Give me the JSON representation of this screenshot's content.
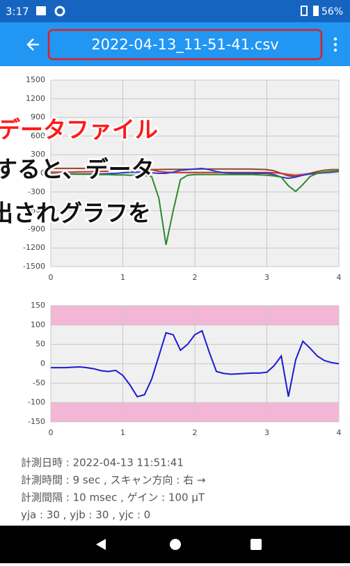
{
  "status_bar": {
    "time": "3:17",
    "battery": "56%"
  },
  "toolbar": {
    "title": "2022-04-13_11-51-41.csv"
  },
  "chart_data": [
    {
      "type": "line",
      "grid": true,
      "xlim": [
        0,
        4
      ],
      "ylim": [
        -1500,
        1500
      ],
      "xticks": [
        0,
        1,
        2,
        3,
        4
      ],
      "yticks": [
        1500,
        1200,
        900,
        600,
        300,
        0,
        -300,
        -600,
        -900,
        -1200,
        -1500
      ],
      "x": [
        0,
        0.1,
        0.2,
        0.3,
        0.4,
        0.5,
        0.6,
        0.7,
        0.8,
        0.9,
        1,
        1.1,
        1.2,
        1.3,
        1.4,
        1.5,
        1.6,
        1.7,
        1.8,
        1.9,
        2,
        2.1,
        2.2,
        2.3,
        2.4,
        2.5,
        2.6,
        2.7,
        2.8,
        2.9,
        3,
        3.1,
        3.2,
        3.3,
        3.4,
        3.5,
        3.6,
        3.7,
        3.8,
        3.9,
        4
      ],
      "series": [
        {
          "color": "#8b4a2b",
          "values": [
            80,
            80,
            80,
            80,
            80,
            80,
            80,
            80,
            80,
            78,
            75,
            70,
            65,
            60,
            60,
            62,
            65,
            65,
            65,
            66,
            68,
            70,
            70,
            70,
            70,
            70,
            70,
            70,
            68,
            65,
            60,
            40,
            0,
            -40,
            -50,
            -30,
            0,
            30,
            50,
            60,
            60
          ]
        },
        {
          "color": "#d03030",
          "values": [
            20,
            20,
            20,
            20,
            25,
            25,
            30,
            30,
            35,
            40,
            60,
            90,
            100,
            90,
            60,
            30,
            20,
            15,
            15,
            15,
            15,
            15,
            15,
            15,
            15,
            15,
            15,
            15,
            15,
            15,
            15,
            10,
            0,
            -20,
            -30,
            -20,
            0,
            10,
            20,
            30,
            35
          ]
        },
        {
          "color": "#2a3ad0",
          "values": [
            -10,
            -10,
            -10,
            -10,
            -10,
            -10,
            -10,
            -10,
            -5,
            0,
            10,
            20,
            20,
            20,
            10,
            0,
            0,
            20,
            50,
            60,
            70,
            80,
            60,
            30,
            10,
            0,
            0,
            0,
            0,
            0,
            0,
            -20,
            -60,
            -80,
            -60,
            -30,
            -10,
            0,
            10,
            20,
            30
          ]
        },
        {
          "color": "#2a8a2a",
          "values": [
            -10,
            -10,
            -10,
            -12,
            -15,
            -15,
            -15,
            -20,
            -20,
            -25,
            -25,
            -30,
            -30,
            -35,
            -50,
            -400,
            -1150,
            -600,
            -100,
            -30,
            -20,
            -20,
            -20,
            -20,
            -20,
            -20,
            -20,
            -20,
            -20,
            -25,
            -30,
            -40,
            -60,
            -200,
            -290,
            -180,
            -50,
            0,
            20,
            30,
            40
          ]
        }
      ]
    },
    {
      "type": "line",
      "grid": true,
      "xlim": [
        0,
        4
      ],
      "ylim": [
        -150,
        150
      ],
      "xticks": [
        0,
        1,
        2,
        3,
        4
      ],
      "yticks": [
        150,
        100,
        50,
        0,
        -50,
        -100,
        -150
      ],
      "bands": [
        {
          "from": 100,
          "to": 150,
          "color": "#f4b6d6"
        },
        {
          "from": -150,
          "to": -100,
          "color": "#f4b6d6"
        }
      ],
      "x": [
        0,
        0.1,
        0.2,
        0.3,
        0.4,
        0.5,
        0.6,
        0.7,
        0.8,
        0.9,
        1,
        1.1,
        1.2,
        1.3,
        1.4,
        1.5,
        1.6,
        1.7,
        1.8,
        1.9,
        2,
        2.1,
        2.2,
        2.3,
        2.4,
        2.5,
        2.6,
        2.7,
        2.8,
        2.9,
        3,
        3.1,
        3.2,
        3.3,
        3.4,
        3.5,
        3.6,
        3.7,
        3.8,
        3.9,
        4
      ],
      "series": [
        {
          "color": "#1a1ad6",
          "values": [
            -10,
            -10,
            -10,
            -9,
            -8,
            -10,
            -13,
            -18,
            -20,
            -17,
            -30,
            -55,
            -85,
            -80,
            -40,
            20,
            80,
            75,
            35,
            50,
            75,
            85,
            30,
            -20,
            -25,
            -27,
            -26,
            -25,
            -24,
            -24,
            -22,
            -5,
            20,
            -85,
            10,
            58,
            40,
            20,
            8,
            3,
            0
          ]
        }
      ]
    }
  ],
  "overlay": {
    "lines": [
      "データファイル",
      "すると、データ",
      "出されグラフを"
    ]
  },
  "info": {
    "lines": [
      "計測日時 : 2022-04-13 11:51:41",
      "計測時間 : 9 sec , スキャン方向 : 右 →",
      "計測間隔 : 10 msec , ゲイン : 100 μT",
      "yja : 30 , yjb : 30 , yjc : 0"
    ]
  }
}
